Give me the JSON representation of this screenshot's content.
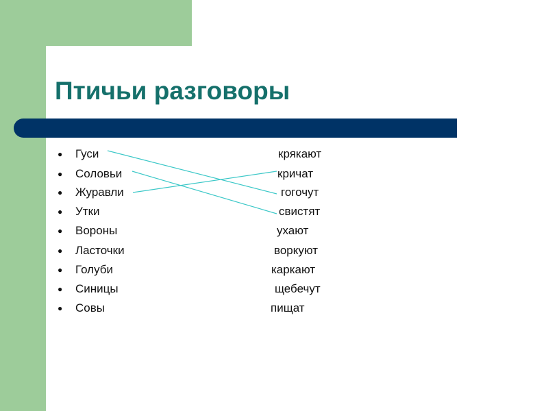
{
  "slide": {
    "title": "Птичьи разговоры",
    "birds": [
      "Гуси",
      "Соловьи",
      "Журавли",
      "Утки",
      "Вороны",
      "Ласточки",
      "Голуби",
      "Синицы",
      "Совы"
    ],
    "sounds": [
      "крякают",
      "кричат",
      "гогочут",
      "свистят",
      "ухают",
      "воркуют",
      "каркают",
      "щебечут",
      "пищат"
    ],
    "connections": [
      {
        "from": "Гуси",
        "to": "гогочут"
      },
      {
        "from": "Соловьи",
        "to": "свистят"
      },
      {
        "from": "Журавли",
        "to": "кричат"
      }
    ],
    "colors": {
      "background_accent": "#9dcc9a",
      "title": "#15706b",
      "bar": "#003366",
      "connector": "#3cc8c8"
    }
  }
}
